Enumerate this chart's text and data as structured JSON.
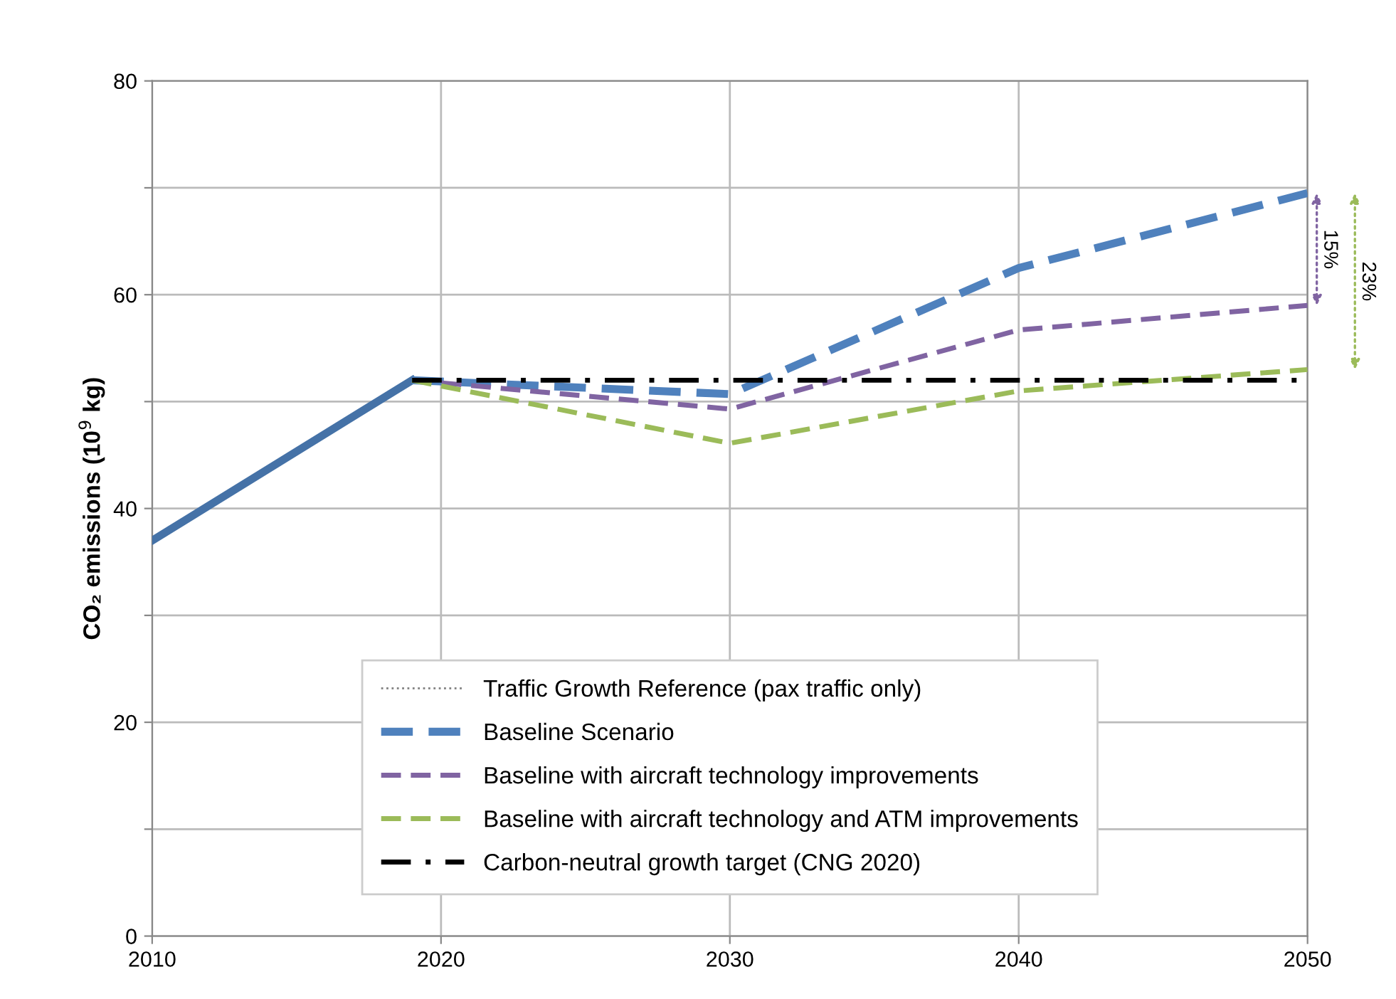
{
  "chart_data": {
    "type": "line",
    "ylabel": "CO₂ emissions (10$^{9}$ kg)",
    "xlim": [
      2010,
      2050
    ],
    "xticks": [
      2010,
      2020,
      2030,
      2040,
      2050
    ],
    "ylim": [
      0,
      80
    ],
    "yticks": [
      0,
      {
        "value": 10,
        "label": null
      },
      20,
      {
        "value": 30,
        "label": null
      },
      40,
      {
        "value": 50,
        "label": null
      },
      60,
      {
        "value": 70,
        "label": null
      },
      80
    ],
    "grid": true,
    "legend": "bottom",
    "marker": "none",
    "series": [
      {
        "color": "#4572a7",
        "line_style": "solid",
        "x": [
          2010,
          2019
        ],
        "values": [
          37,
          52
        ]
      },
      {
        "name": "Traffic Growth Reference (pax traffic only)",
        "color": "#7f7f7f",
        "line_style": "dotted"
      },
      {
        "name": "Baseline Scenario",
        "color": "#4f81bd",
        "line_style": "dashed",
        "x": [
          2019,
          2030,
          2040,
          2050
        ],
        "values": [
          52,
          50.7,
          62.5,
          69.5
        ]
      },
      {
        "name": "Baseline with aircraft technology improvements",
        "color": "#8064a2",
        "line_style": "dashed",
        "x": [
          2019,
          2030,
          2040,
          2050
        ],
        "values": [
          52,
          49.3,
          56.7,
          59
        ]
      },
      {
        "name": "Baseline with aircraft technology and ATM improvements",
        "color": "#9bbb59",
        "line_style": "dashed",
        "x": [
          2019,
          2030,
          2040,
          2050
        ],
        "values": [
          52,
          46.1,
          51,
          53
        ]
      },
      {
        "name": "Carbon-neutral growth target (CNG 2020)",
        "color": "#000000",
        "line_style": "dashdot",
        "x": [
          2019,
          2030,
          2040,
          2050
        ],
        "values": [
          52,
          52,
          52,
          52
        ]
      }
    ],
    "annotations": [
      "15%",
      "23%"
    ]
  }
}
